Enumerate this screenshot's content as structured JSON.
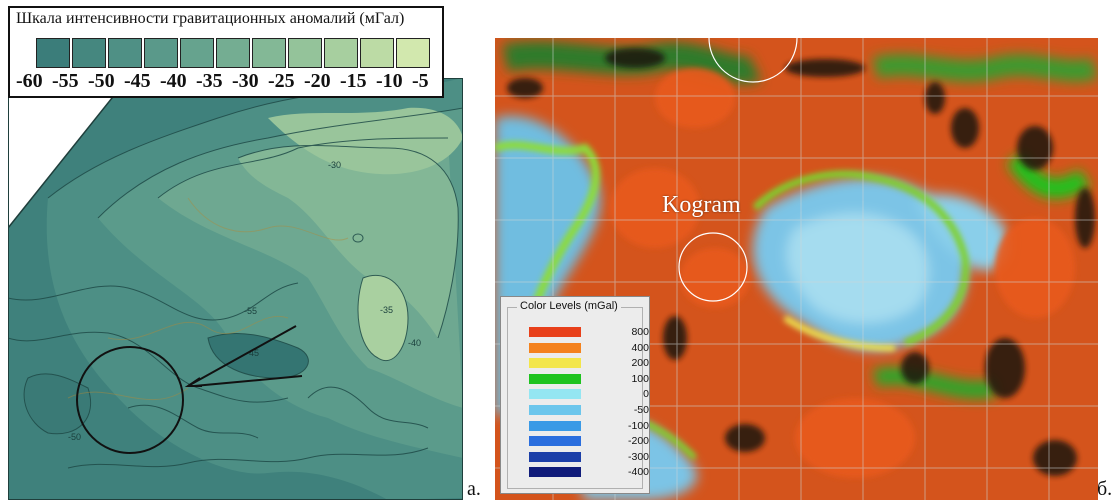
{
  "left_panel": {
    "legend": {
      "title": "Шкала интенсивности гравитационных аномалий (мГал)",
      "swatch_colors": [
        "#3b7d7a",
        "#45877f",
        "#4f9085",
        "#5a998a",
        "#66a38e",
        "#74ad92",
        "#83b896",
        "#94c39a",
        "#a7cf9f",
        "#bcdba5",
        "#d2e8ae"
      ],
      "labels": [
        "-60",
        "-55",
        "-50",
        "-45",
        "-40",
        "-35",
        "-30",
        "-25",
        "-20",
        "-15",
        "-10",
        "-5"
      ]
    },
    "contour_labels": [
      "-55",
      "-45",
      "-50",
      "-40",
      "-35",
      "-30"
    ],
    "panel_label": "а."
  },
  "right_panel": {
    "place_label": "Kogram",
    "legend": {
      "title": "Color Levels (mGal)",
      "levels": [
        {
          "value": "800",
          "color": "#e8401a"
        },
        {
          "value": "400",
          "color": "#f4821e"
        },
        {
          "value": "200",
          "color": "#f3e64a"
        },
        {
          "value": "100",
          "color": "#1fc31f"
        },
        {
          "value": "0",
          "color": "#94e6f2"
        },
        {
          "value": "-50",
          "color": "#6cc6ec"
        },
        {
          "value": "-100",
          "color": "#3a9ae6"
        },
        {
          "value": "-200",
          "color": "#2a6ede"
        },
        {
          "value": "-300",
          "color": "#1c3fa8"
        },
        {
          "value": "-400",
          "color": "#101c7a"
        }
      ]
    },
    "panel_label": "б."
  }
}
